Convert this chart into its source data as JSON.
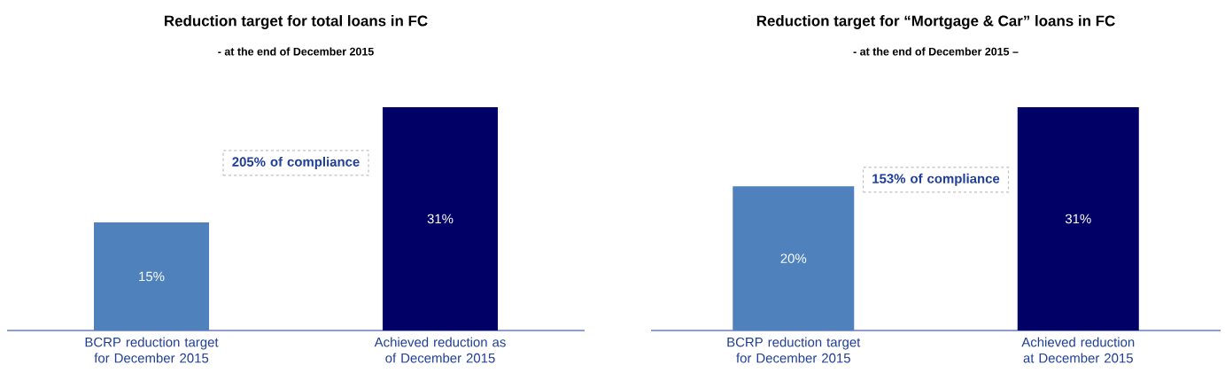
{
  "chart_data": [
    {
      "type": "bar",
      "title": "Reduction target for total loans in FC",
      "subtitle": "- at the end of December 2015",
      "categories": [
        "BCRP reduction target for December 2015",
        "Achieved reduction as of December 2015"
      ],
      "values": [
        15,
        31
      ],
      "colors": [
        "#4f81bd",
        "#000066"
      ],
      "value_labels": [
        "15%",
        "31%"
      ],
      "annotations": [
        "205% of compliance"
      ]
    },
    {
      "type": "bar",
      "title": "Reduction target for “Mortgage & Car” loans in FC",
      "subtitle": "- at the end of December 2015 –",
      "categories": [
        "BCRP reduction target for December 2015",
        "Achieved reduction at December 2015"
      ],
      "values": [
        20,
        31
      ],
      "colors": [
        "#4f81bd",
        "#000066"
      ],
      "value_labels": [
        "20%",
        "31%"
      ],
      "annotations": [
        "153% of compliance"
      ]
    }
  ]
}
